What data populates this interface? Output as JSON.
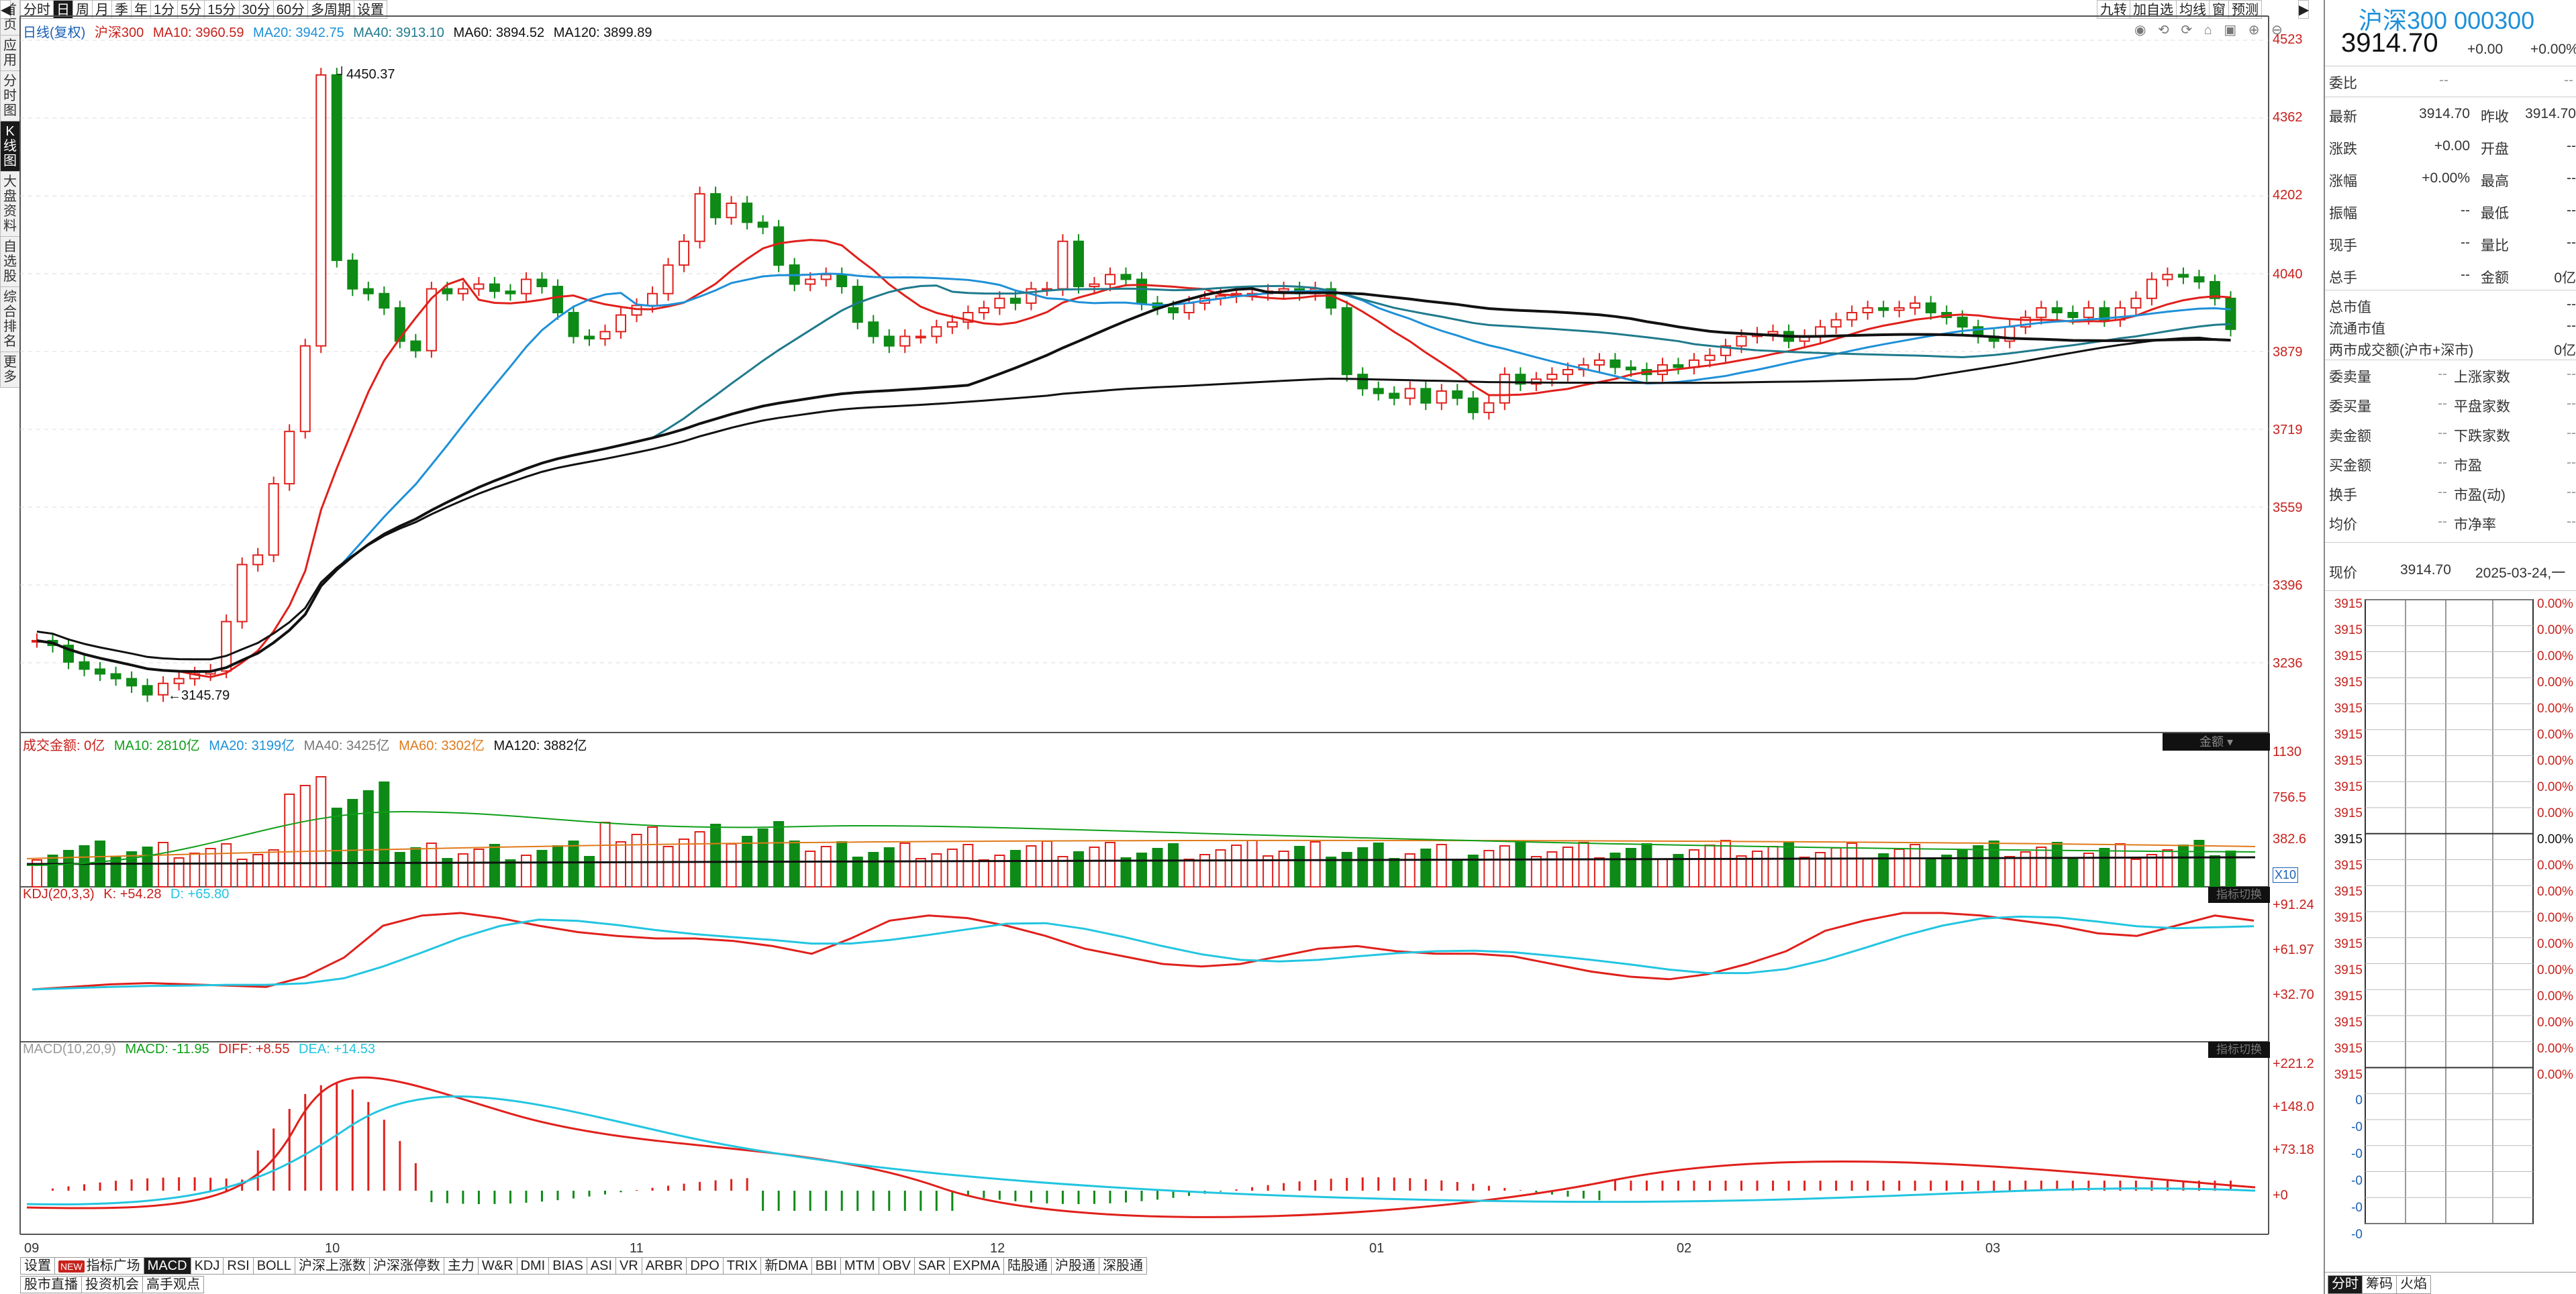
{
  "left_nav": [
    "首页",
    "应用",
    "分时图",
    "K线图",
    "大盘资料",
    "自选股",
    "综合排名",
    "更多"
  ],
  "left_nav_selected": 3,
  "period_tabs": [
    "分时",
    "日",
    "周",
    "月",
    "季",
    "年",
    "1分",
    "5分",
    "15分",
    "30分",
    "60分",
    "多周期",
    "设置"
  ],
  "period_selected": 1,
  "right_tools": [
    "九转",
    "加自选",
    "均线",
    "窗",
    "预测"
  ],
  "nav_arrow_left": "◀",
  "nav_arrow_right": "▶",
  "legend_price": {
    "label": "日线(复权)",
    "name": "沪深300",
    "ma10": "MA10: 3960.59",
    "ma20": "MA20: 3942.75",
    "ma40": "MA40: 3913.10",
    "ma60": "MA60: 3894.52",
    "ma120": "MA120: 3899.89"
  },
  "legend_vol": {
    "label": "成交金额: 0亿",
    "ma10": "MA10: 2810亿",
    "ma20": "MA20: 3199亿",
    "ma40": "MA40: 3425亿",
    "ma60": "MA60: 3302亿",
    "ma120": "MA120: 3882亿"
  },
  "legend_kdj": {
    "label": "KDJ(20,3,3)",
    "k": "K: +54.28",
    "d": "D: +65.80"
  },
  "legend_macd": {
    "label": "MACD(10,20,9)",
    "macd": "MACD: -11.95",
    "diff": "DIFF: +8.55",
    "dea": "DEA: +14.53"
  },
  "vol_badge": "金额",
  "indicator_badge": "指标切换",
  "vol_x10": "X10",
  "price_axis": [
    "4523",
    "4362",
    "4202",
    "4040",
    "3879",
    "3719",
    "3559",
    "3396",
    "3236"
  ],
  "vol_axis": [
    "1130",
    "756.5",
    "382.6"
  ],
  "kdj_axis": [
    "+91.24",
    "+61.97",
    "+32.70"
  ],
  "macd_axis": [
    "+221.2",
    "+148.0",
    "+73.18",
    "+0"
  ],
  "annotations": {
    "high": "4450.37",
    "low": "3145.79"
  },
  "x_labels": [
    "09",
    "10",
    "11",
    "12",
    "01",
    "02",
    "03"
  ],
  "indicator_tabs": [
    "设置",
    "指标广场",
    "MACD",
    "KDJ",
    "RSI",
    "BOLL",
    "沪深上涨数",
    "沪深涨停数",
    "主力",
    "W&R",
    "DMI",
    "BIAS",
    "ASI",
    "VR",
    "ARBR",
    "DPO",
    "TRIX",
    "新DMA",
    "BBI",
    "MTM",
    "OBV",
    "SAR",
    "EXPMA",
    "陆股通",
    "沪股通",
    "深股通"
  ],
  "indicator_new_badge": "NEW",
  "indicator_selected": "MACD",
  "bottom_tabs": [
    "股市直播",
    "投资机会",
    "高手观点"
  ],
  "quote": {
    "title": "沪深300 000300",
    "price": "3914.70",
    "change": "+0.00",
    "pct": "+0.00%",
    "weibi_label": "委比",
    "weibi_value": "--",
    "weicha_value": "--",
    "rows_a": [
      [
        "最新",
        "3914.70",
        "昨收",
        "3914.70"
      ],
      [
        "涨跌",
        "+0.00",
        "开盘",
        "--"
      ],
      [
        "涨幅",
        "+0.00%",
        "最高",
        "--"
      ],
      [
        "振幅",
        "--",
        "最低",
        "--"
      ],
      [
        "现手",
        "--",
        "量比",
        "--"
      ],
      [
        "总手",
        "--",
        "金额",
        "0亿"
      ]
    ],
    "rows_b": [
      [
        "总市值",
        "--"
      ],
      [
        "流通市值",
        "--"
      ],
      [
        "两市成交额(沪市+深市)",
        "0亿"
      ]
    ],
    "rows_c": [
      [
        "委卖量",
        "--",
        "上涨家数",
        "--"
      ],
      [
        "委买量",
        "--",
        "平盘家数",
        "--"
      ],
      [
        "卖金额",
        "--",
        "下跌家数",
        "--"
      ],
      [
        "买金额",
        "--",
        "市盈",
        "--"
      ],
      [
        "换手",
        "--",
        "市盈(动)",
        "--"
      ],
      [
        "均价",
        "--",
        "市净率",
        "--"
      ]
    ],
    "now_label": "现价",
    "now_value": "3914.70",
    "now_date": "2025-03-24,一",
    "mini_price": "3915",
    "mini_pct": "0.00%",
    "mini_low_price": "0",
    "mini_low_pct": "0.00%",
    "mini_low_negatives": "-0",
    "bottom_tabs": [
      "分时",
      "筹码",
      "火焰"
    ]
  },
  "colors": {
    "up": "#e0201b",
    "down": "#0e8a16",
    "ma10": "#e0201b",
    "ma20": "#1e90d8",
    "ma40": "#1f7a8c",
    "ma60": "#111111",
    "ma120": "#111111",
    "k": "#e0201b",
    "d": "#22c5e0"
  }
}
